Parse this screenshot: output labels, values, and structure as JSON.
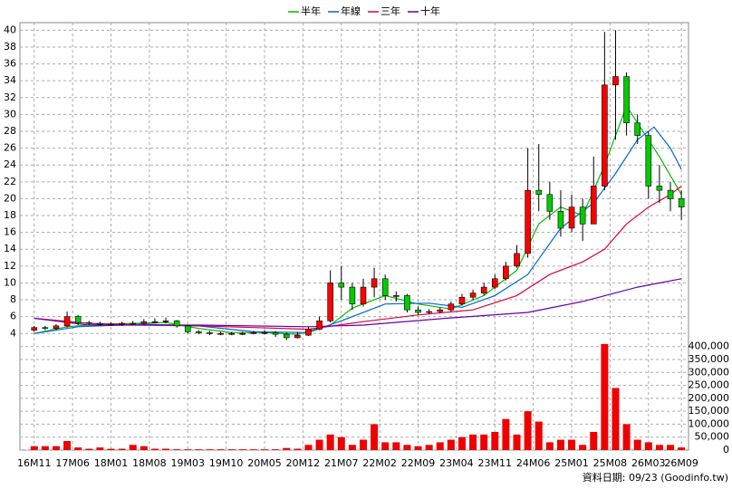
{
  "chart_data": {
    "type": "candlestick",
    "x": [
      0,
      2,
      4,
      6,
      8,
      10,
      12,
      14,
      16,
      18,
      20,
      22,
      24,
      26,
      28,
      30,
      32,
      34,
      36,
      38,
      40,
      42,
      44,
      46,
      48,
      50,
      52,
      54,
      56,
      58,
      60,
      62,
      64,
      66,
      68,
      70,
      72,
      74,
      76,
      78,
      80,
      82,
      84,
      86,
      88,
      90,
      92,
      94,
      96,
      98,
      100,
      102,
      104,
      106,
      108,
      110,
      112,
      114,
      116,
      118
    ],
    "open": [
      4.4,
      4.7,
      4.6,
      4.9,
      6.0,
      5.3,
      5.2,
      5.1,
      5.1,
      5.2,
      5.2,
      5.4,
      5.4,
      5.5,
      4.9,
      4.2,
      4.1,
      4.0,
      4.0,
      4.0,
      4.0,
      4.1,
      4.1,
      3.9,
      3.5,
      3.8,
      4.5,
      5.5,
      10.0,
      9.5,
      7.5,
      9.5,
      10.5,
      8.5,
      8.5,
      6.8,
      6.5,
      6.6,
      6.8,
      7.5,
      8.3,
      8.8,
      9.5,
      10.5,
      12.0,
      13.5,
      21.0,
      20.5,
      18.5,
      16.5,
      19.0,
      17.0,
      21.5,
      33.5,
      34.5,
      29.0,
      27.5,
      21.5,
      21.0,
      20.0
    ],
    "high": [
      4.9,
      4.9,
      5.1,
      6.6,
      6.2,
      5.5,
      5.4,
      5.3,
      5.4,
      5.5,
      5.7,
      5.8,
      5.9,
      5.6,
      5.0,
      4.4,
      4.3,
      4.2,
      4.2,
      4.2,
      4.3,
      4.4,
      4.3,
      4.1,
      4.2,
      4.8,
      6.0,
      11.5,
      12.0,
      10.0,
      10.5,
      11.8,
      11.0,
      9.0,
      8.7,
      7.2,
      6.9,
      7.1,
      7.8,
      8.7,
      9.2,
      10.0,
      11.0,
      12.5,
      14.5,
      26.0,
      26.5,
      22.0,
      21.0,
      20.5,
      20.0,
      25.0,
      39.8,
      40.0,
      35.0,
      30.0,
      28.0,
      24.0,
      22.0,
      21.0
    ],
    "low": [
      4.2,
      4.4,
      4.4,
      4.7,
      5.0,
      5.0,
      4.9,
      4.9,
      4.9,
      5.0,
      5.1,
      5.2,
      5.2,
      4.7,
      4.0,
      3.9,
      3.8,
      3.8,
      3.8,
      3.8,
      3.9,
      3.9,
      3.6,
      3.2,
      3.4,
      3.7,
      4.4,
      5.3,
      8.0,
      6.8,
      7.2,
      8.3,
      8.0,
      7.8,
      6.5,
      6.2,
      6.3,
      6.4,
      6.6,
      7.3,
      8.0,
      8.5,
      9.3,
      10.3,
      11.8,
      13.0,
      18.5,
      17.5,
      15.5,
      16.0,
      15.0,
      17.0,
      21.0,
      27.0,
      27.5,
      26.5,
      20.0,
      19.5,
      18.5,
      17.5
    ],
    "close": [
      4.7,
      4.6,
      4.9,
      6.0,
      5.3,
      5.2,
      5.1,
      5.1,
      5.2,
      5.2,
      5.4,
      5.4,
      5.5,
      4.9,
      4.2,
      4.1,
      4.0,
      4.0,
      4.0,
      4.0,
      4.1,
      4.1,
      3.9,
      3.5,
      3.8,
      4.5,
      5.5,
      10.0,
      9.5,
      7.5,
      9.5,
      10.5,
      8.5,
      8.5,
      6.8,
      6.5,
      6.6,
      6.8,
      7.5,
      8.3,
      8.8,
      9.5,
      10.5,
      12.0,
      13.5,
      21.0,
      20.5,
      18.5,
      16.5,
      19.0,
      17.0,
      21.5,
      33.5,
      34.5,
      29.0,
      27.5,
      21.5,
      21.0,
      20.0,
      19.0
    ],
    "up_color": "#ff0000",
    "down_color": "#00cc00",
    "series": [
      {
        "name": "半年",
        "color": "#00bb00",
        "x": [
          0,
          6,
          12,
          18,
          24,
          30,
          36,
          42,
          48,
          54,
          58,
          64,
          70,
          76,
          82,
          88,
          92,
          96,
          100,
          104,
          108,
          110,
          114,
          118
        ],
        "values": [
          4.0,
          4.8,
          5.1,
          5.2,
          5.3,
          4.6,
          4.1,
          4.1,
          3.9,
          5.0,
          7.0,
          8.5,
          7.5,
          6.9,
          8.5,
          11.5,
          17,
          19,
          18,
          24,
          31,
          29,
          25,
          20.5
        ]
      },
      {
        "name": "年線",
        "color": "#0066dd",
        "x": [
          0,
          8,
          20,
          30,
          40,
          50,
          56,
          64,
          72,
          78,
          84,
          90,
          96,
          102,
          106,
          110,
          113,
          116,
          118
        ],
        "values": [
          4.0,
          4.8,
          5.1,
          4.9,
          4.2,
          4.1,
          5.5,
          7.5,
          7.6,
          7.1,
          8.5,
          11,
          16.5,
          19.5,
          23,
          27,
          28.5,
          26,
          23.5
        ]
      },
      {
        "name": "三年",
        "color": "#dd0044",
        "x": [
          0,
          10,
          20,
          30,
          40,
          50,
          60,
          70,
          80,
          88,
          94,
          100,
          104,
          108,
          112,
          116,
          118
        ],
        "values": [
          5.8,
          5.2,
          5.0,
          4.9,
          4.7,
          4.5,
          5.4,
          6.2,
          6.8,
          8.5,
          11,
          12.5,
          14,
          17,
          19,
          20.5,
          21.5
        ]
      },
      {
        "name": "十年",
        "color": "#6600aa",
        "x": [
          0,
          10,
          30,
          50,
          60,
          75,
          90,
          100,
          110,
          118
        ],
        "values": [
          5.8,
          5.0,
          5.0,
          4.8,
          5.0,
          5.8,
          6.5,
          7.8,
          9.5,
          10.5
        ]
      }
    ],
    "xlim": [
      -2.6,
      119.3
    ],
    "xticks": [
      {
        "value": 0,
        "label": "16M11"
      },
      {
        "value": 7,
        "label": "17M06"
      },
      {
        "value": 14,
        "label": "18M01"
      },
      {
        "value": 21,
        "label": "18M08"
      },
      {
        "value": 28,
        "label": "19M03"
      },
      {
        "value": 35,
        "label": "19M10"
      },
      {
        "value": 42,
        "label": "20M05"
      },
      {
        "value": 49,
        "label": "20M12"
      },
      {
        "value": 56,
        "label": "21M07"
      },
      {
        "value": 63,
        "label": "22M02"
      },
      {
        "value": 70,
        "label": "22M09"
      },
      {
        "value": 77,
        "label": "23M04"
      },
      {
        "value": 84,
        "label": "23M11"
      },
      {
        "value": 91,
        "label": "24M06"
      },
      {
        "value": 98,
        "label": "25M01"
      },
      {
        "value": 105,
        "label": "25M08"
      },
      {
        "value": 112,
        "label": "26M03"
      },
      {
        "value": 118,
        "label": "26M09"
      }
    ],
    "ylim": [
      2.2,
      40.9
    ],
    "yticks": [
      4,
      6,
      8,
      10,
      12,
      14,
      16,
      18,
      20,
      22,
      24,
      26,
      28,
      30,
      32,
      34,
      36,
      38,
      40
    ],
    "volume": {
      "color": "#ee0000",
      "values": [
        15000,
        15000,
        15000,
        35000,
        10000,
        5000,
        10000,
        5000,
        5000,
        20000,
        15000,
        5000,
        5000,
        3000,
        3000,
        3000,
        3000,
        3000,
        3000,
        3000,
        3000,
        3000,
        3000,
        8000,
        5000,
        20000,
        40000,
        60000,
        50000,
        20000,
        40000,
        100000,
        30000,
        30000,
        20000,
        15000,
        20000,
        30000,
        40000,
        50000,
        60000,
        60000,
        70000,
        120000,
        60000,
        150000,
        110000,
        30000,
        40000,
        40000,
        20000,
        70000,
        410000,
        240000,
        100000,
        40000,
        30000,
        20000,
        20000,
        10000
      ],
      "ylim": [
        0,
        420000
      ],
      "yticks": [
        {
          "value": 0,
          "label": "0"
        },
        {
          "value": 50000,
          "label": "50,000"
        },
        {
          "value": 100000,
          "label": "100,000"
        },
        {
          "value": 150000,
          "label": "150,000"
        },
        {
          "value": 200000,
          "label": "200,000"
        },
        {
          "value": 250000,
          "label": "250,000"
        },
        {
          "value": 300000,
          "label": "300,000"
        },
        {
          "value": 350000,
          "label": "350,000"
        },
        {
          "value": 400000,
          "label": "400,000"
        }
      ]
    },
    "grid": true,
    "legend": "top",
    "footer": "資料日期: 09/23 (Goodinfo.tw)"
  }
}
